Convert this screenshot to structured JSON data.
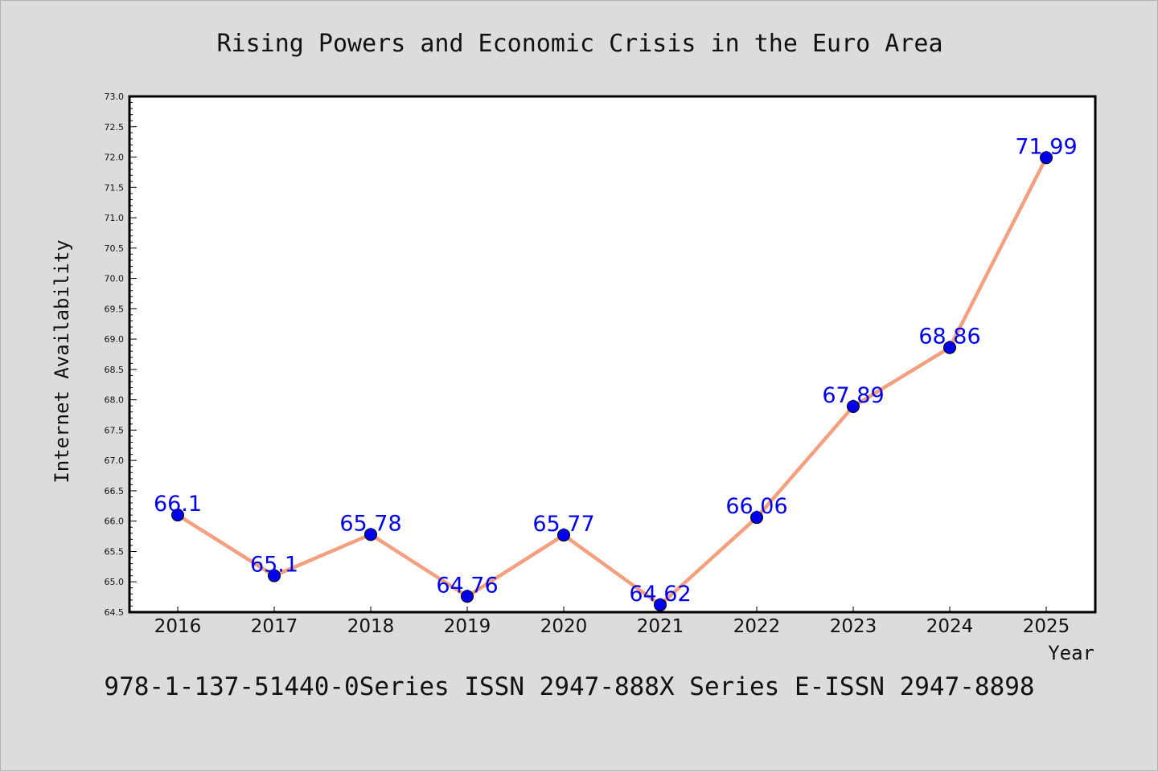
{
  "chart_data": {
    "type": "line",
    "title": "Rising Powers and Economic Crisis in the Euro Area",
    "xlabel": "Year",
    "ylabel": "Internet Availability",
    "categories": [
      "2016",
      "2017",
      "2018",
      "2019",
      "2020",
      "2021",
      "2022",
      "2023",
      "2024",
      "2025"
    ],
    "series": [
      {
        "values": [
          66.1,
          65.1,
          65.78,
          64.76,
          65.77,
          64.62,
          66.06,
          67.89,
          68.86,
          71.99
        ],
        "labels": [
          "66.1",
          "65.1",
          "65.78",
          "64.76",
          "65.77",
          "64.62",
          "66.06",
          "67.89",
          "68.86",
          "71.99"
        ],
        "line_color": "#f4a07e",
        "marker_color": "#0000ee"
      }
    ],
    "ylim": [
      64.5,
      73.0
    ],
    "yticks": [
      "64.5",
      "65.0",
      "65.5",
      "66.0",
      "66.5",
      "67.0",
      "67.5",
      "68.0",
      "68.5",
      "69.0",
      "69.5",
      "70.0",
      "70.5",
      "71.0",
      "71.5",
      "72.0",
      "72.5",
      "73.0"
    ],
    "grid": false,
    "legend": "none"
  },
  "footer": "978-1-137-51440-0Series ISSN 2947-888X Series E-ISSN 2947-8898",
  "colors": {
    "background": "#dcdcdc",
    "plot_background": "#ffffff",
    "line": "#f4a07e",
    "marker": "#0000ee",
    "data_label": "#0000ee"
  }
}
